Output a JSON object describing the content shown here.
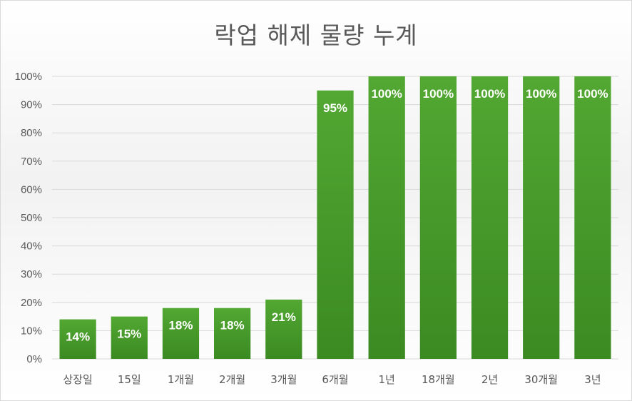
{
  "chart_data": {
    "type": "bar",
    "title": "락업 해제 물량 누계",
    "xlabel": "",
    "ylabel": "",
    "categories": [
      "상장일",
      "15일",
      "1개월",
      "2개월",
      "3개월",
      "6개월",
      "1년",
      "18개월",
      "2년",
      "30개월",
      "3년"
    ],
    "values": [
      14,
      15,
      18,
      18,
      21,
      95,
      100,
      100,
      100,
      100,
      100
    ],
    "data_labels": [
      "14%",
      "15%",
      "18%",
      "18%",
      "21%",
      "95%",
      "100%",
      "100%",
      "100%",
      "100%",
      "100%"
    ],
    "ylim": [
      0,
      100
    ],
    "yticks": [
      "0%",
      "10%",
      "20%",
      "30%",
      "40%",
      "50%",
      "60%",
      "70%",
      "80%",
      "90%",
      "100%"
    ],
    "grid": true,
    "legend": "none",
    "colors": {
      "bar_top": "#52a832",
      "bar_bottom": "#3b8a22",
      "label": "#ffffff",
      "grid": "#d9d9d9",
      "text": "#595959"
    }
  }
}
